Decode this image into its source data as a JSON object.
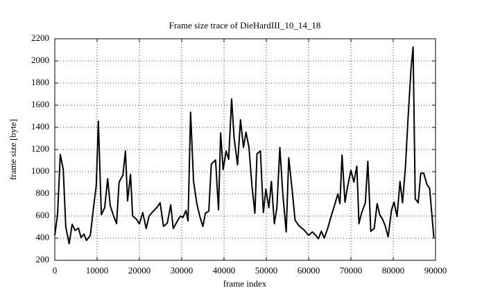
{
  "chart_data": {
    "type": "line",
    "title": "Frame size trace of DieHardIII_10_14_18",
    "xlabel": "frame index",
    "ylabel": "frame size [byte]",
    "x": [
      0,
      650,
      1300,
      2000,
      2600,
      3400,
      4100,
      4800,
      5600,
      6200,
      6900,
      7500,
      8400,
      9200,
      9800,
      10300,
      11000,
      11800,
      12500,
      13100,
      13900,
      14600,
      15200,
      16100,
      16700,
      17200,
      17900,
      18400,
      19200,
      20000,
      20800,
      21600,
      22300,
      23300,
      24100,
      24900,
      25700,
      26600,
      27400,
      28000,
      28900,
      29700,
      30300,
      31000,
      31500,
      32100,
      32800,
      33600,
      34300,
      35000,
      35600,
      36400,
      37000,
      38000,
      38700,
      39200,
      39800,
      40500,
      41100,
      41800,
      42400,
      43200,
      43900,
      44600,
      45200,
      45900,
      46600,
      47300,
      47800,
      48600,
      49300,
      49900,
      50600,
      51200,
      51900,
      52500,
      53200,
      53900,
      54700,
      55300,
      56000,
      56800,
      57700,
      58900,
      60000,
      60900,
      61700,
      62300,
      63000,
      63700,
      64500,
      65300,
      66300,
      66900,
      67400,
      67900,
      68600,
      69200,
      70000,
      70700,
      71400,
      71900,
      72500,
      73400,
      74000,
      74700,
      75500,
      76200,
      76800,
      77500,
      78100,
      78800,
      79600,
      80200,
      80900,
      81600,
      82200,
      82900,
      83500,
      84200,
      84700,
      85200,
      85900,
      86500,
      87200,
      88000,
      88600,
      89600
    ],
    "series": [
      {
        "name": "frame size",
        "color": "#000000",
        "values": [
          425,
          612,
          1156,
          1020,
          500,
          350,
          525,
          470,
          490,
          406,
          437,
          380,
          425,
          690,
          875,
          1456,
          612,
          675,
          937,
          694,
          600,
          531,
          906,
          969,
          1187,
          737,
          975,
          600,
          575,
          531,
          631,
          487,
          600,
          644,
          675,
          719,
          506,
          537,
          700,
          487,
          550,
          600,
          587,
          650,
          556,
          1537,
          912,
          706,
          594,
          506,
          625,
          644,
          1069,
          1106,
          656,
          1350,
          1019,
          1187,
          1112,
          1656,
          1300,
          1062,
          1469,
          1219,
          1356,
          1219,
          875,
          625,
          1162,
          1187,
          631,
          844,
          675,
          912,
          531,
          675,
          1219,
          800,
          456,
          1125,
          875,
          562,
          512,
          475,
          425,
          456,
          425,
          394,
          462,
          400,
          487,
          594,
          719,
          800,
          712,
          1150,
          725,
          862,
          1012,
          906,
          1050,
          531,
          625,
          719,
          1094,
          462,
          487,
          712,
          612,
          569,
          512,
          412,
          656,
          725,
          594,
          912,
          719,
          1050,
          1481,
          1925,
          2125,
          756,
          719,
          987,
          987,
          881,
          850,
          406
        ]
      }
    ],
    "xlim": [
      0,
      90000
    ],
    "ylim": [
      200,
      2200
    ],
    "xticks": [
      0,
      10000,
      20000,
      30000,
      40000,
      50000,
      60000,
      70000,
      80000,
      90000
    ],
    "yticks": [
      200,
      400,
      600,
      800,
      1000,
      1200,
      1400,
      1600,
      1800,
      2000,
      2200
    ],
    "grid": true
  }
}
